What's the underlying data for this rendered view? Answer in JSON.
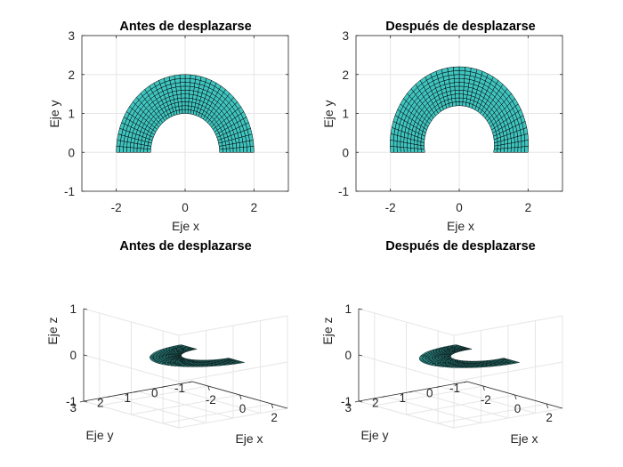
{
  "figure": {
    "background": "#ffffff"
  },
  "chart_data": [
    {
      "type": "mesh-2d",
      "title": "Antes de desplazarse",
      "xlabel": "Eje x",
      "ylabel": "Eje y",
      "xlim": [
        -3,
        3
      ],
      "ylim": [
        -1,
        3
      ],
      "xticks": [
        -2,
        0,
        2
      ],
      "yticks": [
        -1,
        0,
        1,
        2,
        3
      ],
      "grid": true,
      "face_color": "#40c4bf",
      "edge_color": "#000000",
      "shape": {
        "inner_radius": 1,
        "outer_radius": 2,
        "theta_deg": [
          0,
          180
        ],
        "radial_divisions": 10,
        "angular_divisions": 40,
        "displacement": 0
      }
    },
    {
      "type": "mesh-2d",
      "title": "Después de desplazarse",
      "xlabel": "Eje x",
      "ylabel": "Eje y",
      "xlim": [
        -3,
        3
      ],
      "ylim": [
        -1,
        3
      ],
      "xticks": [
        -2,
        0,
        2
      ],
      "yticks": [
        -1,
        0,
        1,
        2,
        3
      ],
      "grid": true,
      "face_color": "#40c4bf",
      "edge_color": "#000000",
      "shape": {
        "inner_radius": 1,
        "outer_radius": 2,
        "theta_deg": [
          0,
          180
        ],
        "radial_divisions": 10,
        "angular_divisions": 40,
        "displacement": 0.2
      }
    },
    {
      "type": "mesh-3d",
      "title": "Antes de desplazarse",
      "xlabel": "Eje x",
      "ylabel": "Eje y",
      "zlabel": "Eje z",
      "xlim": [
        -3,
        3
      ],
      "ylim": [
        -1,
        3
      ],
      "zlim": [
        -1,
        1
      ],
      "xticks": [
        -2,
        0,
        2
      ],
      "yticks": [
        -1,
        0,
        1,
        2,
        3
      ],
      "zticks": [
        -1,
        0,
        1
      ],
      "grid": true,
      "face_color": "#40c4bf",
      "edge_color": "#000000",
      "shape": {
        "inner_radius": 1,
        "outer_radius": 2,
        "theta_deg": [
          0,
          180
        ],
        "radial_divisions": 10,
        "angular_divisions": 40,
        "displacement": 0
      }
    },
    {
      "type": "mesh-3d",
      "title": "Después de desplazarse",
      "xlabel": "Eje x",
      "ylabel": "Eje y",
      "zlabel": "Eje z",
      "xlim": [
        -3,
        3
      ],
      "ylim": [
        -1,
        3
      ],
      "zlim": [
        -1,
        1
      ],
      "xticks": [
        -2,
        0,
        2
      ],
      "yticks": [
        -1,
        0,
        1,
        2,
        3
      ],
      "zticks": [
        -1,
        0,
        1
      ],
      "grid": true,
      "face_color": "#40c4bf",
      "edge_color": "#000000",
      "shape": {
        "inner_radius": 1,
        "outer_radius": 2,
        "theta_deg": [
          0,
          180
        ],
        "radial_divisions": 10,
        "angular_divisions": 40,
        "displacement": 0.2
      }
    }
  ]
}
